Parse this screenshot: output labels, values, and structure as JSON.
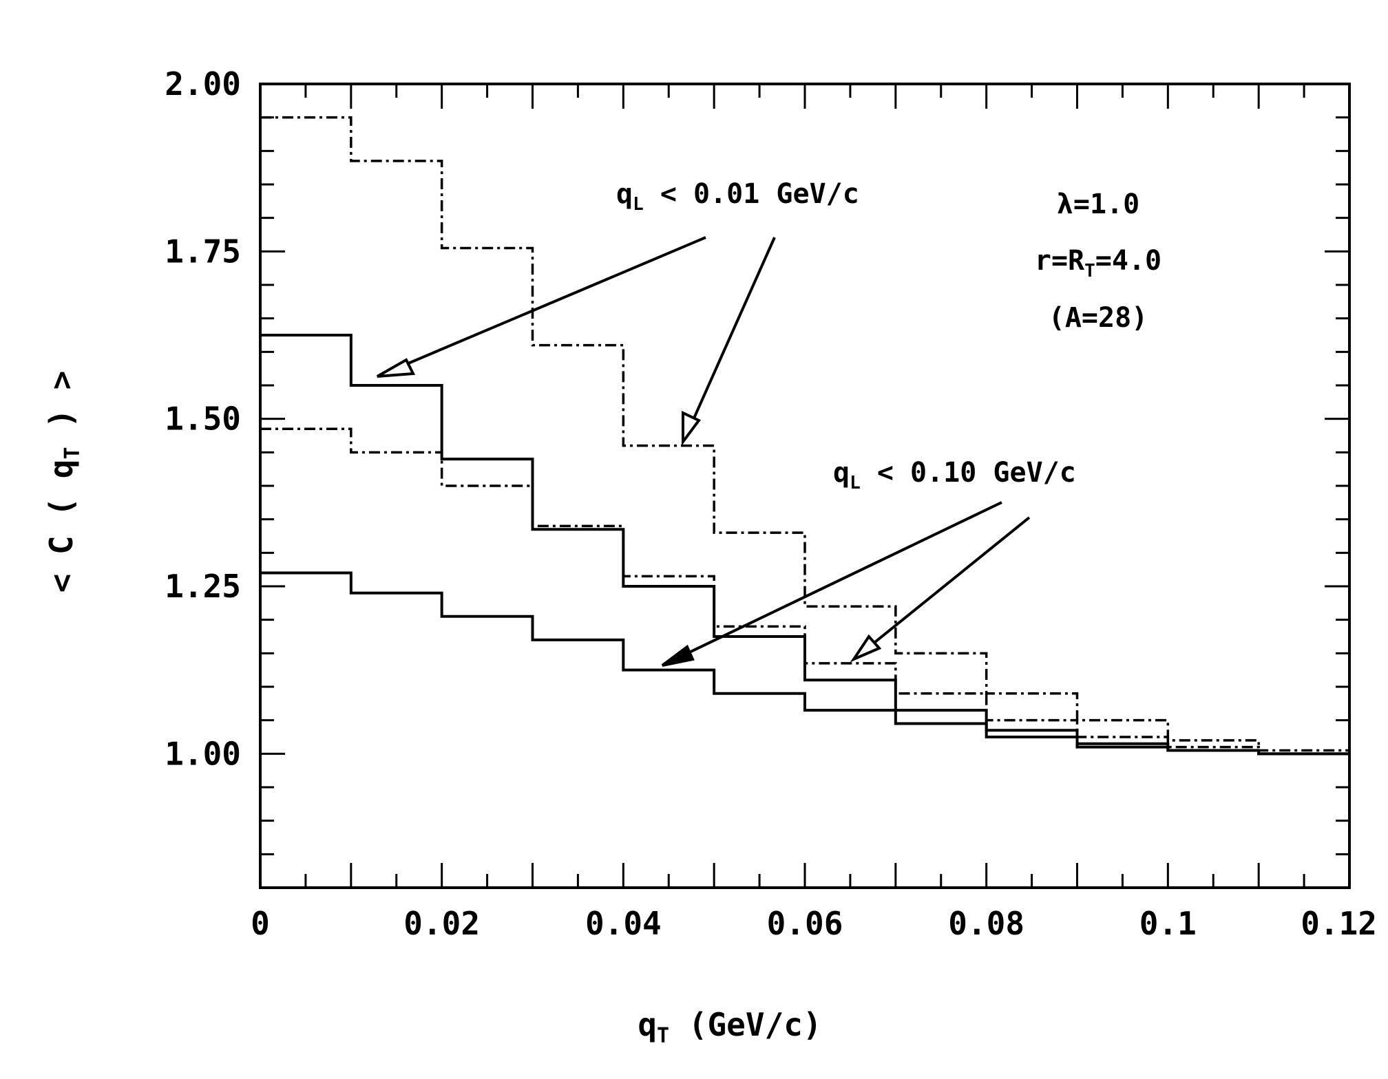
{
  "chart_data": {
    "type": "line",
    "subtype": "step-histogram",
    "title": "",
    "xlabel": "q_T (GeV/c)",
    "ylabel": "< C ( q_T ) >",
    "xlim": [
      0,
      0.12
    ],
    "ylim": [
      0.8,
      2.0
    ],
    "x_ticks": [
      {
        "value": 0,
        "label": "0"
      },
      {
        "value": 0.02,
        "label": "0.02"
      },
      {
        "value": 0.04,
        "label": "0.04"
      },
      {
        "value": 0.06,
        "label": "0.06"
      },
      {
        "value": 0.08,
        "label": "0.08"
      },
      {
        "value": 0.1,
        "label": "0.1"
      },
      {
        "value": 0.12,
        "label": "0.12"
      }
    ],
    "y_ticks": [
      {
        "value": 1.0,
        "label": "1.00"
      },
      {
        "value": 1.25,
        "label": "1.25"
      },
      {
        "value": 1.5,
        "label": "1.50"
      },
      {
        "value": 1.75,
        "label": "1.75"
      },
      {
        "value": 2.0,
        "label": "2.00"
      }
    ],
    "bin_edges": [
      0,
      0.01,
      0.02,
      0.03,
      0.04,
      0.05,
      0.06,
      0.07,
      0.08,
      0.09,
      0.1,
      0.11,
      0.12
    ],
    "series": [
      {
        "id": "s1",
        "style": "dash-dot",
        "values": [
          1.95,
          1.885,
          1.755,
          1.61,
          1.46,
          1.33,
          1.22,
          1.15,
          1.09,
          1.05,
          1.02,
          1.005
        ]
      },
      {
        "id": "s2",
        "style": "solid",
        "values": [
          1.625,
          1.55,
          1.44,
          1.335,
          1.25,
          1.175,
          1.11,
          1.065,
          1.035,
          1.015,
          1.005,
          1.0
        ]
      },
      {
        "id": "s3",
        "style": "dash-dot",
        "values": [
          1.485,
          1.45,
          1.4,
          1.34,
          1.265,
          1.19,
          1.135,
          1.09,
          1.05,
          1.025,
          1.01,
          1.0
        ]
      },
      {
        "id": "s4",
        "style": "solid",
        "values": [
          1.27,
          1.24,
          1.205,
          1.17,
          1.125,
          1.09,
          1.065,
          1.045,
          1.025,
          1.01,
          1.005,
          1.0
        ]
      }
    ],
    "annotations": {
      "upper_label": "q_L < 0.01 GeV/c",
      "lower_label": "q_L < 0.10 GeV/c",
      "params": [
        "λ=1.0",
        "r=R_T=4.0",
        "(A=28)"
      ]
    },
    "grid": false,
    "legend": "none",
    "line_color": "#000000"
  }
}
